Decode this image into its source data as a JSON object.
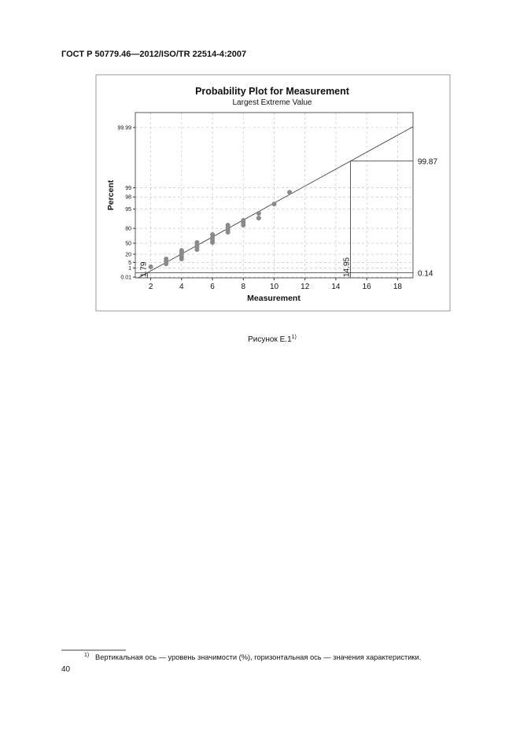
{
  "header": "ГОСТ Р 50779.46—2012/ISO/TR 22514-4:2007",
  "chart_data": {
    "type": "scatter",
    "title": "Probability Plot for Measurement",
    "subtitle": "Largest Extreme Value",
    "x_label": "Measurement",
    "y_label": "Percent",
    "yscale": "largest-extreme-value",
    "grid": true,
    "color": "#8a8a8a",
    "x": [
      2,
      3,
      3,
      3,
      4,
      4,
      4,
      4,
      4,
      5,
      5,
      5,
      5,
      6,
      6,
      6,
      6,
      7,
      7,
      7,
      7,
      8,
      8,
      8,
      9,
      9,
      10,
      11
    ],
    "values": [
      1.5,
      3.6,
      6.3,
      10,
      10,
      14.6,
      20,
      26.1,
      30,
      32.6,
      39.2,
      45.8,
      52.1,
      52.1,
      58,
      63.5,
      70,
      74.2,
      78,
      81.2,
      84,
      84,
      86.5,
      88.6,
      90.4,
      93.2,
      96.6,
      98.6
    ],
    "xlim": [
      1,
      19
    ],
    "xticks": [
      2,
      4,
      6,
      8,
      10,
      12,
      14,
      16,
      18
    ],
    "ylim": [
      0.0057,
      99.9968
    ],
    "yticks": [
      0.01,
      1,
      5,
      20,
      50,
      80,
      95,
      98,
      99,
      99.99
    ],
    "reference": {
      "x": [
        1.79,
        14.95
      ],
      "y": [
        0.14,
        99.87
      ]
    }
  },
  "caption": {
    "text": "Рисунок Е.1",
    "note": "1)"
  },
  "footnote": {
    "marker": "1)",
    "text": "Вертикальная ось — уровень значимости (%), горизонтальная ось — значения характеристики."
  },
  "page_number": "40"
}
